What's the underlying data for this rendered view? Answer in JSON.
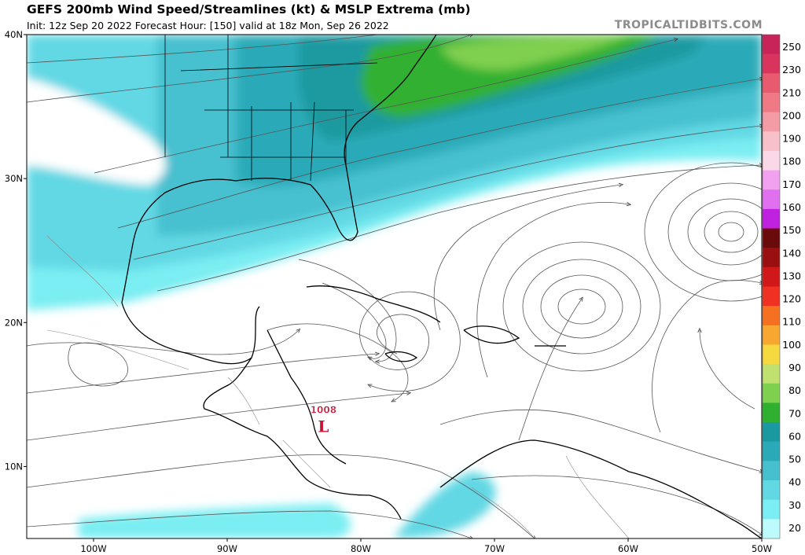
{
  "header": {
    "title": "GEFS 200mb Wind Speed/Streamlines (kt) & MSLP Extrema (mb)",
    "subtitle": "Init: 12z Sep 20 2022   Forecast Hour: [150]   valid at 18z Mon, Sep 26 2022",
    "brand": "TROPICALTIDBITS.COM"
  },
  "map": {
    "lat_labels": [
      "40N",
      "30N",
      "20N",
      "10N"
    ],
    "lon_labels": [
      "100W",
      "90W",
      "80W",
      "70W",
      "60W",
      "50W"
    ],
    "extent": {
      "west": -105,
      "east": -50,
      "south": 5,
      "north": 40
    }
  },
  "pressure_low": {
    "value": "1008",
    "symbol": "L",
    "lat": 13.5,
    "lon": -82.8,
    "color": "#cc1133"
  },
  "colorbar": {
    "labels": [
      "250",
      "230",
      "210",
      "200",
      "190",
      "180",
      "170",
      "160",
      "150",
      "140",
      "130",
      "120",
      "110",
      "100",
      "90",
      "80",
      "70",
      "60",
      "50",
      "40",
      "30",
      "20"
    ],
    "colors": [
      "#c8245a",
      "#d8345e",
      "#e85a6e",
      "#ef7a86",
      "#f49ca6",
      "#f8c0c8",
      "#fbd8e8",
      "#f2a0f0",
      "#e070f0",
      "#c020e0",
      "#6a0a0a",
      "#9a1010",
      "#d01818",
      "#f03020",
      "#f57020",
      "#f8a830",
      "#f6d840",
      "#c0e070",
      "#80d050",
      "#30b030",
      "#1a9aa0",
      "#2aaab8",
      "#46c0cf",
      "#62d8e4",
      "#7aeef2",
      "#bdfafc"
    ]
  }
}
